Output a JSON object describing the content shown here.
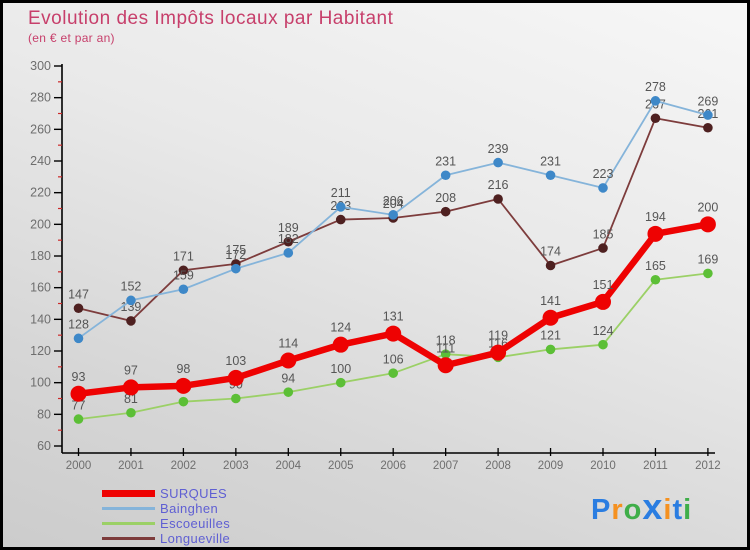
{
  "header": {
    "title": "Evolution des Impôts locaux par Habitant",
    "subtitle": "(en € et par an)",
    "title_color": "#c73f6b"
  },
  "chart_data": {
    "type": "line",
    "title": "Evolution des Impôts locaux par Habitant",
    "subtitle": "(en € et par an)",
    "x": [
      2000,
      2001,
      2002,
      2003,
      2004,
      2005,
      2006,
      2007,
      2008,
      2009,
      2010,
      2011,
      2012
    ],
    "ylim": [
      60,
      300
    ],
    "yticks": [
      60,
      80,
      100,
      120,
      140,
      160,
      180,
      200,
      220,
      240,
      260,
      280,
      300
    ],
    "grid": false,
    "legend_position": "bottom-left",
    "highlight": "SURQUES",
    "minor_tick_color": "#cc2a2a",
    "axis_color": "#000000",
    "tick_label_color": "#6e6e6e",
    "data_label_color": "#565656",
    "series": [
      {
        "name": "SURQUES",
        "color": "#ee0202",
        "marker_color": "#ee0202",
        "values": [
          93,
          97,
          98,
          103,
          114,
          124,
          131,
          111,
          119,
          141,
          151,
          194,
          200
        ]
      },
      {
        "name": "Bainghen",
        "color": "#85b4da",
        "marker_color": "#3e88c8",
        "values": [
          128,
          152,
          159,
          172,
          182,
          211,
          206,
          231,
          239,
          231,
          223,
          278,
          269
        ]
      },
      {
        "name": "Escoeuilles",
        "color": "#9bd066",
        "marker_color": "#5cbf36",
        "values": [
          77,
          81,
          88,
          90,
          94,
          100,
          106,
          118,
          116,
          121,
          124,
          165,
          169
        ]
      },
      {
        "name": "Longueville",
        "color": "#7d3c3c",
        "marker_color": "#4e2020",
        "values": [
          147,
          139,
          171,
          175,
          189,
          203,
          204,
          208,
          216,
          174,
          185,
          267,
          261
        ]
      }
    ],
    "draw_order": [
      "Escoeuilles",
      "Longueville",
      "Bainghen",
      "SURQUES"
    ]
  },
  "legend": {
    "items": [
      "SURQUES",
      "Bainghen",
      "Escoeuilles",
      "Longueville"
    ],
    "text_color": "#5f5fd3"
  },
  "logo": {
    "text": "Proxiti",
    "letters": [
      {
        "ch": "P",
        "color": "#2a7de1"
      },
      {
        "ch": "r",
        "color": "#f59120"
      },
      {
        "ch": "o",
        "color": "#3fae49"
      },
      {
        "ch": "x",
        "color": "#2a7de1"
      },
      {
        "ch": "i",
        "color": "#f59120"
      },
      {
        "ch": "t",
        "color": "#2a7de1"
      },
      {
        "ch": "i",
        "color": "#3fae49"
      }
    ]
  }
}
